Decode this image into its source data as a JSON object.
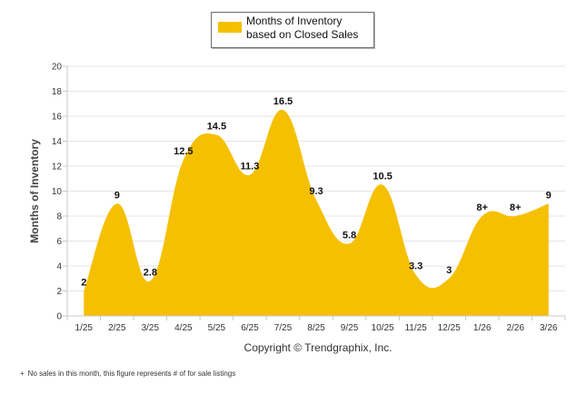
{
  "legend": {
    "label": "Months of Inventory based on Closed Sales"
  },
  "copyright": "Copyright © Trendgraphix, Inc.",
  "footnote": {
    "mark": "+",
    "text": "No sales in this month, this figure represents # of for sale listings"
  },
  "colors": {
    "area": "#f5c000",
    "grid": "#e6e6e6",
    "axis": "#c8c8c8",
    "text": "#111111"
  },
  "chart_data": {
    "type": "area",
    "title": "",
    "xlabel": "",
    "ylabel": "Months of Inventory",
    "ylim": [
      0,
      20
    ],
    "yticks": [
      0,
      2,
      4,
      6,
      8,
      10,
      12,
      14,
      16,
      18,
      20
    ],
    "grid": true,
    "legend_position": "top-center",
    "categories": [
      "1/25",
      "2/25",
      "3/25",
      "4/25",
      "5/25",
      "6/25",
      "7/25",
      "8/25",
      "9/25",
      "10/25",
      "11/25",
      "12/25",
      "1/26",
      "2/26",
      "3/26"
    ],
    "series": [
      {
        "name": "Months of Inventory based on Closed Sales",
        "values": [
          2,
          9,
          2.8,
          12.5,
          14.5,
          11.3,
          16.5,
          9.3,
          5.8,
          10.5,
          3.3,
          3,
          8,
          8,
          9
        ],
        "labels": [
          "2",
          "9",
          "2.8",
          "12.5",
          "14.5",
          "11.3",
          "16.5",
          "9.3",
          "5.8",
          "10.5",
          "3.3",
          "3",
          "8+",
          "8+",
          "9"
        ]
      }
    ]
  }
}
